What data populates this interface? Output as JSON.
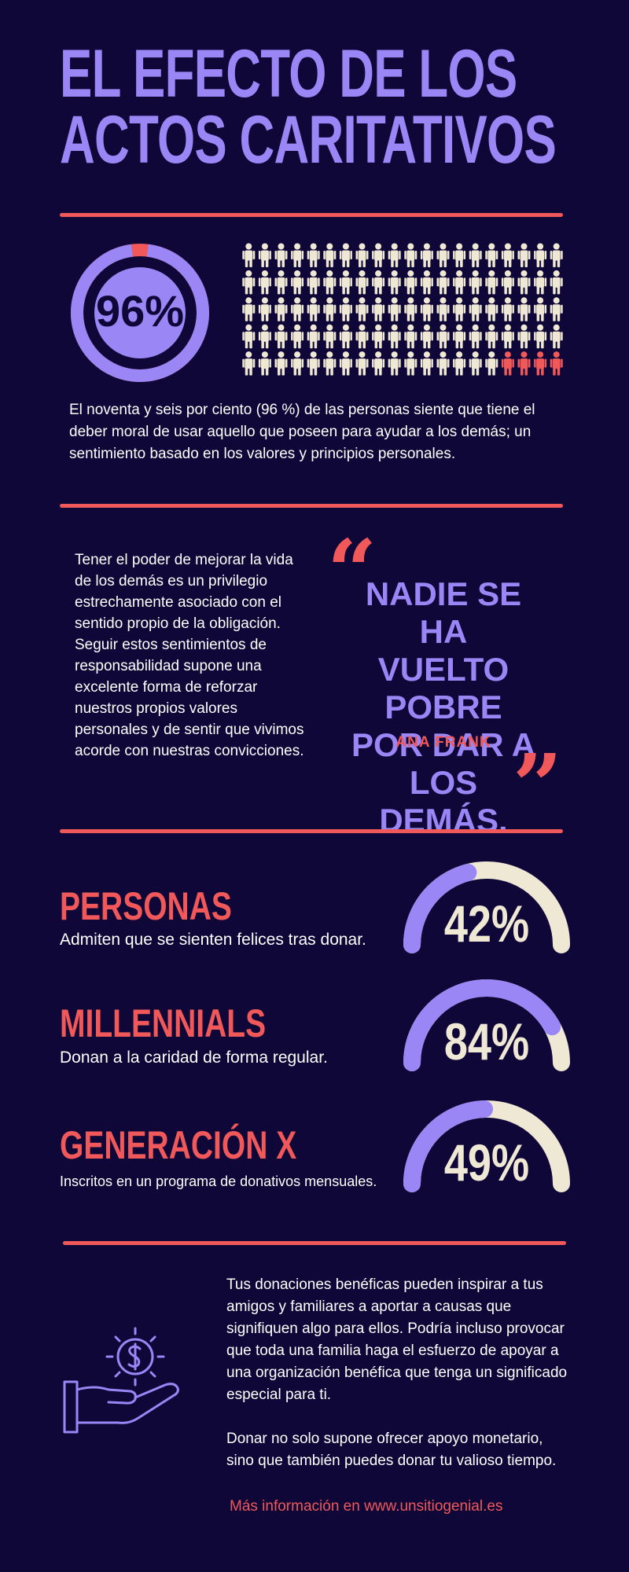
{
  "header": {
    "title_line1": "EL EFECTO DE LOS",
    "title_line2": "ACTOS CARITATIVOS"
  },
  "stat96": {
    "value_label": "96%",
    "fraction": 0.96,
    "people_total": 100,
    "people_highlighted": 4,
    "description": "El noventa y seis por ciento (96 %) de las personas siente que tiene el deber moral de usar aquello que poseen para ayudar a los demás; un sentimiento basado en los valores y principios personales."
  },
  "quote_section": {
    "paragraph": "Tener el poder de mejorar la vida de los demás es un privilegio estrechamente asociado con el sentido propio de la obligación. Seguir estos sentimientos de responsabilidad supone una excelente forma de reforzar nuestros propios valores personales y de sentir que vivimos acorde con nuestras convicciones.",
    "quote_lines": [
      "NADIE SE HA",
      "VUELTO POBRE",
      "POR DAR A",
      "LOS DEMÁS."
    ],
    "author": "ANA FRANK",
    "open_quote": "“",
    "close_quote": "”"
  },
  "stats": [
    {
      "heading": "PERSONAS",
      "subtext": "Admiten que se sienten felices tras donar.",
      "value_label": "42%",
      "fraction": 0.42
    },
    {
      "heading": "MILLENNIALS",
      "subtext": "Donan a la caridad de forma regular.",
      "value_label": "84%",
      "fraction": 0.84
    },
    {
      "heading": "GENERACIÓN X",
      "subtext": "Inscritos en un programa de donativos mensuales.",
      "value_label": "49%",
      "fraction": 0.49
    }
  ],
  "footer": {
    "paragraph1": "Tus donaciones benéficas pueden inspirar a tus amigos y familiares a aportar a causas que signifiquen algo para ellos. Podría incluso provocar que toda una familia haga el esfuerzo de apoyar a una organización benéfica que tenga un significado especial para ti.",
    "paragraph2": "Donar no solo supone ofrecer apoyo monetario, sino que también puedes donar tu valioso tiempo.",
    "link_text": "Más información en www.unsitiogenial.es",
    "icon": "hand-money-icon"
  },
  "colors": {
    "background": "#0e0738",
    "purple": "#9a86f5",
    "coral": "#f0585a",
    "cream": "#efe8d4"
  }
}
